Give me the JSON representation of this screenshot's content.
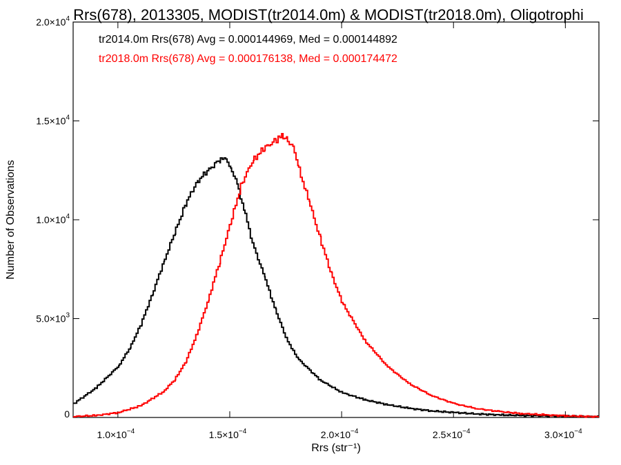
{
  "chart_data": {
    "type": "line",
    "title": "Rrs(678), 2013305, MODIST(tr2014.0m) & MODIST(tr2018.0m), Oligotrophi",
    "xlabel": "Rrs (str⁻¹)",
    "ylabel": "Number of Observations",
    "xlim": [
      8e-05,
      0.000315
    ],
    "ylim": [
      0,
      20000
    ],
    "grid": false,
    "step": true,
    "x_ticks": [
      {
        "value": 0.0001,
        "mant": "1.0×10",
        "exp": "−4"
      },
      {
        "value": 0.00015,
        "mant": "1.5×10",
        "exp": "−4"
      },
      {
        "value": 0.0002,
        "mant": "2.0×10",
        "exp": "−4"
      },
      {
        "value": 0.00025,
        "mant": "2.5×10",
        "exp": "−4"
      },
      {
        "value": 0.0003,
        "mant": "3.0×10",
        "exp": "−4"
      }
    ],
    "y_ticks": [
      {
        "value": 0,
        "mant": "0",
        "exp": ""
      },
      {
        "value": 5000,
        "mant": "5.0×10",
        "exp": "3"
      },
      {
        "value": 10000,
        "mant": "1.0×10",
        "exp": "4"
      },
      {
        "value": 15000,
        "mant": "1.5×10",
        "exp": "4"
      },
      {
        "value": 20000,
        "mant": "2.0×10",
        "exp": "4"
      }
    ],
    "series": [
      {
        "name": "tr2014.0m",
        "color": "#000000",
        "label": "tr2014.0m Rrs(678) Avg = 0.000144969, Med = 0.000144892",
        "x": [
          8e-05,
          9e-05,
          0.0001,
          0.000105,
          0.00011,
          0.000115,
          0.00012,
          0.000125,
          0.00013,
          0.000135,
          0.00014,
          0.000145,
          0.000148,
          0.00015,
          0.000153,
          0.000156,
          0.00016,
          0.000165,
          0.00017,
          0.000175,
          0.00018,
          0.00019,
          0.0002,
          0.00021,
          0.00022,
          0.00023,
          0.00024,
          0.00025,
          0.00026,
          0.00027,
          0.00028,
          0.0003,
          0.000315
        ],
        "y": [
          700,
          1500,
          2600,
          3500,
          4700,
          6200,
          7800,
          9300,
          10800,
          11900,
          12500,
          13000,
          13100,
          12700,
          11800,
          10600,
          8800,
          7200,
          5500,
          4000,
          3000,
          1900,
          1250,
          900,
          650,
          460,
          330,
          250,
          180,
          130,
          100,
          60,
          40
        ]
      },
      {
        "name": "tr2018.0m",
        "color": "#ff0000",
        "label": "tr2018.0m Rrs(678) Avg = 0.000176138, Med = 0.000174472",
        "x": [
          8e-05,
          9e-05,
          0.0001,
          0.00011,
          0.00012,
          0.000125,
          0.00013,
          0.000135,
          0.00014,
          0.000145,
          0.00015,
          0.000155,
          0.00016,
          0.000165,
          0.00017,
          0.000173,
          0.000175,
          0.000178,
          0.00018,
          0.000185,
          0.00019,
          0.000195,
          0.0002,
          0.00021,
          0.00022,
          0.00023,
          0.00024,
          0.00025,
          0.00026,
          0.00027,
          0.00028,
          0.00029,
          0.0003,
          0.000315
        ],
        "y": [
          50,
          100,
          250,
          600,
          1300,
          1900,
          2800,
          4200,
          5900,
          7800,
          9800,
          11800,
          13000,
          13600,
          14000,
          14200,
          14100,
          13700,
          12800,
          11000,
          9100,
          7300,
          5800,
          3900,
          2600,
          1700,
          1100,
          700,
          450,
          300,
          200,
          130,
          80,
          30
        ]
      }
    ]
  }
}
